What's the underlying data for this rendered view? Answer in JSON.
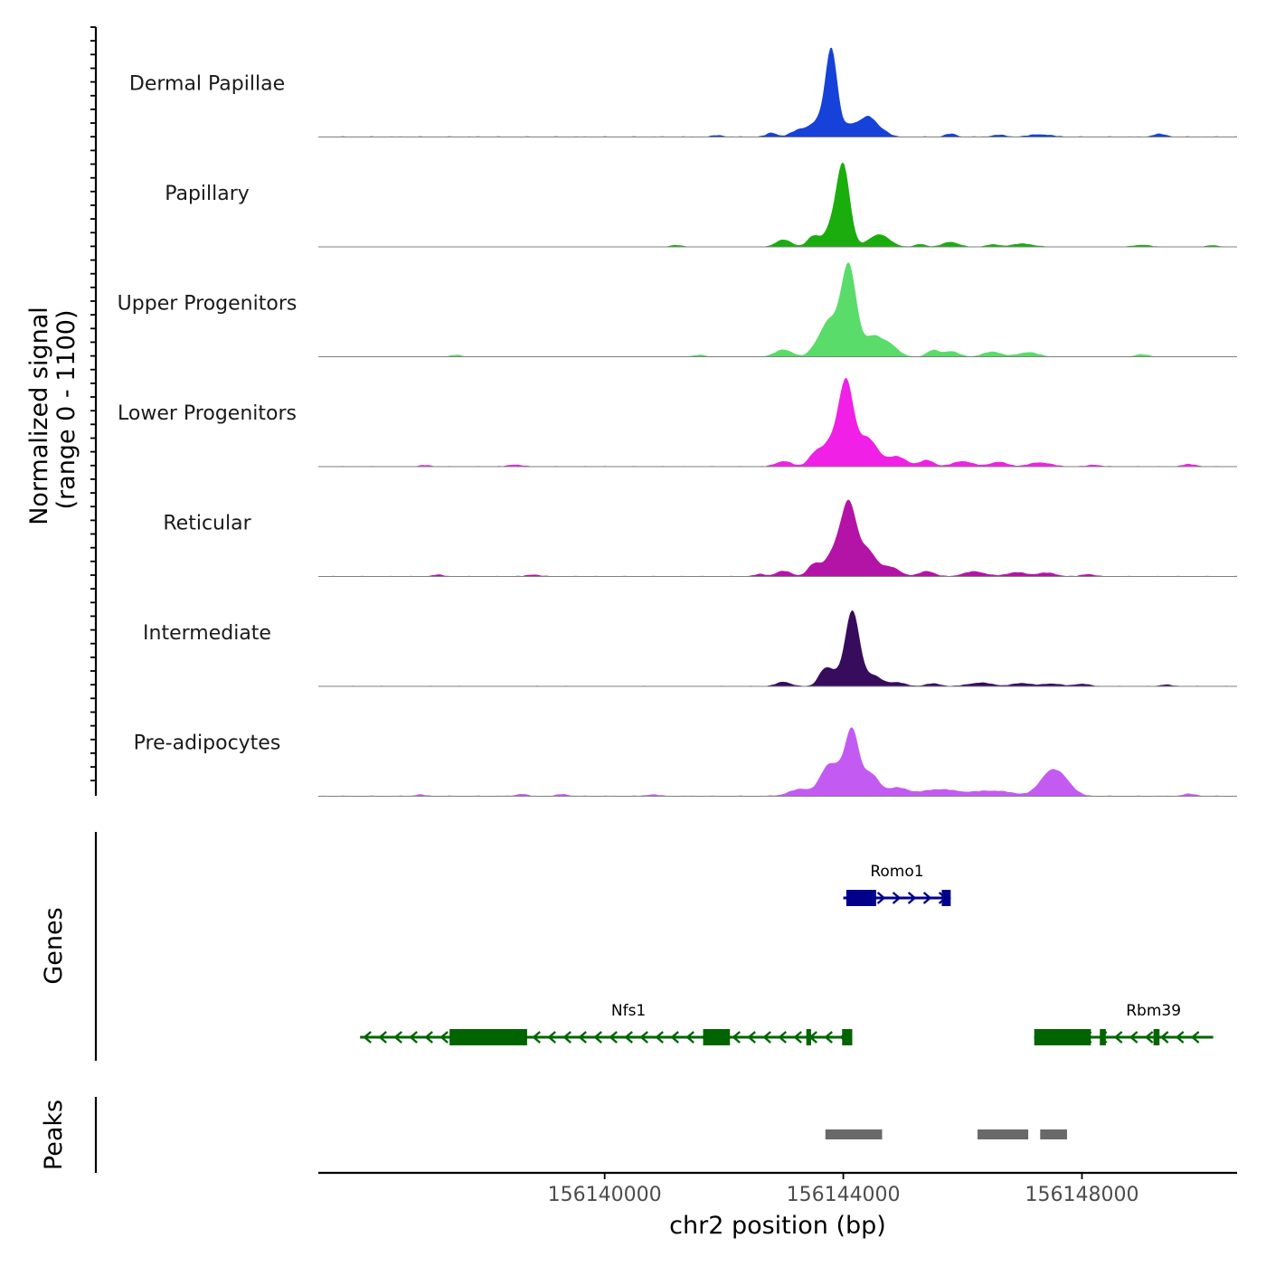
{
  "chart_data": {
    "type": "area",
    "title": "",
    "y_axis_title_line1": "Normalized signal",
    "y_axis_title_line2": "(range 0 - 1100)",
    "ylim": [
      0,
      1100
    ],
    "xlabel": "chr2 position (bp)",
    "xlim": [
      156135200,
      156150600
    ],
    "x_ticks": [
      156140000,
      156144000,
      156148000
    ],
    "x_tick_labels": [
      "156140000",
      "156144000",
      "156148000"
    ],
    "series": [
      {
        "name": "Dermal Papillae",
        "color": "#1642DA",
        "baseline": 8,
        "peaks": [
          [
            156143800,
            900,
            95
          ],
          [
            156144150,
            140,
            200
          ],
          [
            156143250,
            70,
            130
          ],
          [
            156143600,
            180,
            160
          ],
          [
            156144450,
            180,
            130
          ],
          [
            156144700,
            45,
            90
          ],
          [
            156142800,
            45,
            90
          ],
          [
            156145800,
            35,
            90
          ],
          [
            156146600,
            22,
            110
          ],
          [
            156147300,
            28,
            180
          ],
          [
            156149300,
            32,
            110
          ],
          [
            156141900,
            18,
            90
          ]
        ]
      },
      {
        "name": "Papillary",
        "color": "#1AAD0D",
        "baseline": 5,
        "peaks": [
          [
            156144000,
            900,
            110
          ],
          [
            156143800,
            200,
            120
          ],
          [
            156143000,
            80,
            130
          ],
          [
            156143500,
            120,
            100
          ],
          [
            156144600,
            140,
            170
          ],
          [
            156145300,
            30,
            90
          ],
          [
            156145800,
            55,
            130
          ],
          [
            156146500,
            25,
            110
          ],
          [
            156147000,
            35,
            180
          ],
          [
            156141200,
            18,
            100
          ],
          [
            156149000,
            22,
            130
          ],
          [
            156150200,
            18,
            90
          ]
        ]
      },
      {
        "name": "Upper Progenitors",
        "color": "#59DC6A",
        "baseline": 6,
        "peaks": [
          [
            156144100,
            870,
            120
          ],
          [
            156143900,
            320,
            180
          ],
          [
            156144500,
            230,
            160
          ],
          [
            156143700,
            200,
            120
          ],
          [
            156143000,
            80,
            140
          ],
          [
            156143500,
            60,
            90
          ],
          [
            156144800,
            110,
            130
          ],
          [
            156145500,
            70,
            100
          ],
          [
            156145800,
            60,
            130
          ],
          [
            156146500,
            55,
            150
          ],
          [
            156147100,
            50,
            160
          ],
          [
            156141600,
            20,
            90
          ],
          [
            156137500,
            18,
            90
          ],
          [
            156149000,
            25,
            110
          ]
        ]
      },
      {
        "name": "Lower Progenitors",
        "color": "#F020E6",
        "baseline": 7,
        "peaks": [
          [
            156144050,
            850,
            120
          ],
          [
            156143800,
            280,
            180
          ],
          [
            156144400,
            320,
            170
          ],
          [
            156143000,
            60,
            130
          ],
          [
            156143500,
            90,
            100
          ],
          [
            156144900,
            110,
            160
          ],
          [
            156145400,
            70,
            120
          ],
          [
            156146000,
            60,
            160
          ],
          [
            156146600,
            50,
            150
          ],
          [
            156147300,
            45,
            180
          ],
          [
            156138500,
            22,
            110
          ],
          [
            156137000,
            15,
            90
          ],
          [
            156149800,
            25,
            120
          ],
          [
            156148200,
            20,
            100
          ]
        ]
      },
      {
        "name": "Reticular",
        "color": "#B414A6",
        "baseline": 7,
        "peaks": [
          [
            156144100,
            650,
            120
          ],
          [
            156143900,
            320,
            180
          ],
          [
            156144400,
            290,
            150
          ],
          [
            156143000,
            60,
            130
          ],
          [
            156143500,
            120,
            100
          ],
          [
            156144800,
            100,
            150
          ],
          [
            156145400,
            60,
            120
          ],
          [
            156146200,
            55,
            180
          ],
          [
            156146900,
            45,
            160
          ],
          [
            156147400,
            40,
            160
          ],
          [
            156142600,
            25,
            90
          ],
          [
            156138800,
            20,
            100
          ],
          [
            156137200,
            18,
            90
          ],
          [
            156148100,
            25,
            100
          ]
        ]
      },
      {
        "name": "Intermediate",
        "color": "#370C5C",
        "baseline": 6,
        "peaks": [
          [
            156144150,
            850,
            120
          ],
          [
            156143800,
            160,
            120
          ],
          [
            156143650,
            110,
            90
          ],
          [
            156144500,
            120,
            140
          ],
          [
            156143000,
            50,
            120
          ],
          [
            156144900,
            45,
            130
          ],
          [
            156145500,
            30,
            130
          ],
          [
            156146300,
            40,
            200
          ],
          [
            156147000,
            35,
            160
          ],
          [
            156147500,
            30,
            150
          ],
          [
            156148000,
            28,
            120
          ],
          [
            156149400,
            18,
            100
          ]
        ]
      },
      {
        "name": "Pre-adipocytes",
        "color": "#C35BF3",
        "baseline": 8,
        "peaks": [
          [
            156144150,
            680,
            110
          ],
          [
            156143900,
            280,
            150
          ],
          [
            156144450,
            250,
            140
          ],
          [
            156143700,
            200,
            120
          ],
          [
            156143300,
            80,
            200
          ],
          [
            156144900,
            90,
            180
          ],
          [
            156145600,
            75,
            300
          ],
          [
            156146500,
            60,
            350
          ],
          [
            156147450,
            240,
            170
          ],
          [
            156147700,
            150,
            160
          ],
          [
            156138600,
            24,
            90
          ],
          [
            156139300,
            22,
            90
          ],
          [
            156136900,
            16,
            90
          ],
          [
            156149800,
            24,
            110
          ],
          [
            156140800,
            18,
            100
          ]
        ]
      }
    ],
    "genes_title": "Genes",
    "genes": [
      {
        "name": "Romo1",
        "strand": "+",
        "color": "#00008B",
        "start": 156144000,
        "end": 156145800,
        "exons": [
          [
            156144050,
            156144550
          ],
          [
            156145650,
            156145800
          ]
        ]
      },
      {
        "name": "Nfs1",
        "strand": "-",
        "color": "#006400",
        "start": 156135900,
        "end": 156144150,
        "exons": [
          [
            156137400,
            156138700
          ],
          [
            156141650,
            156142100
          ],
          [
            156143380,
            156143460
          ],
          [
            156143980,
            156144150
          ]
        ]
      },
      {
        "name": "Rbm39",
        "strand": "-",
        "color": "#006400",
        "start": 156147200,
        "end": 156150200,
        "exons": [
          [
            156147200,
            156148150
          ],
          [
            156148300,
            156148400
          ],
          [
            156149200,
            156149300
          ]
        ]
      }
    ],
    "peaks_title": "Peaks",
    "peaks_color": "#696969",
    "peak_regions": [
      [
        156143700,
        156144650
      ],
      [
        156146250,
        156147100
      ],
      [
        156147300,
        156147750
      ]
    ]
  }
}
